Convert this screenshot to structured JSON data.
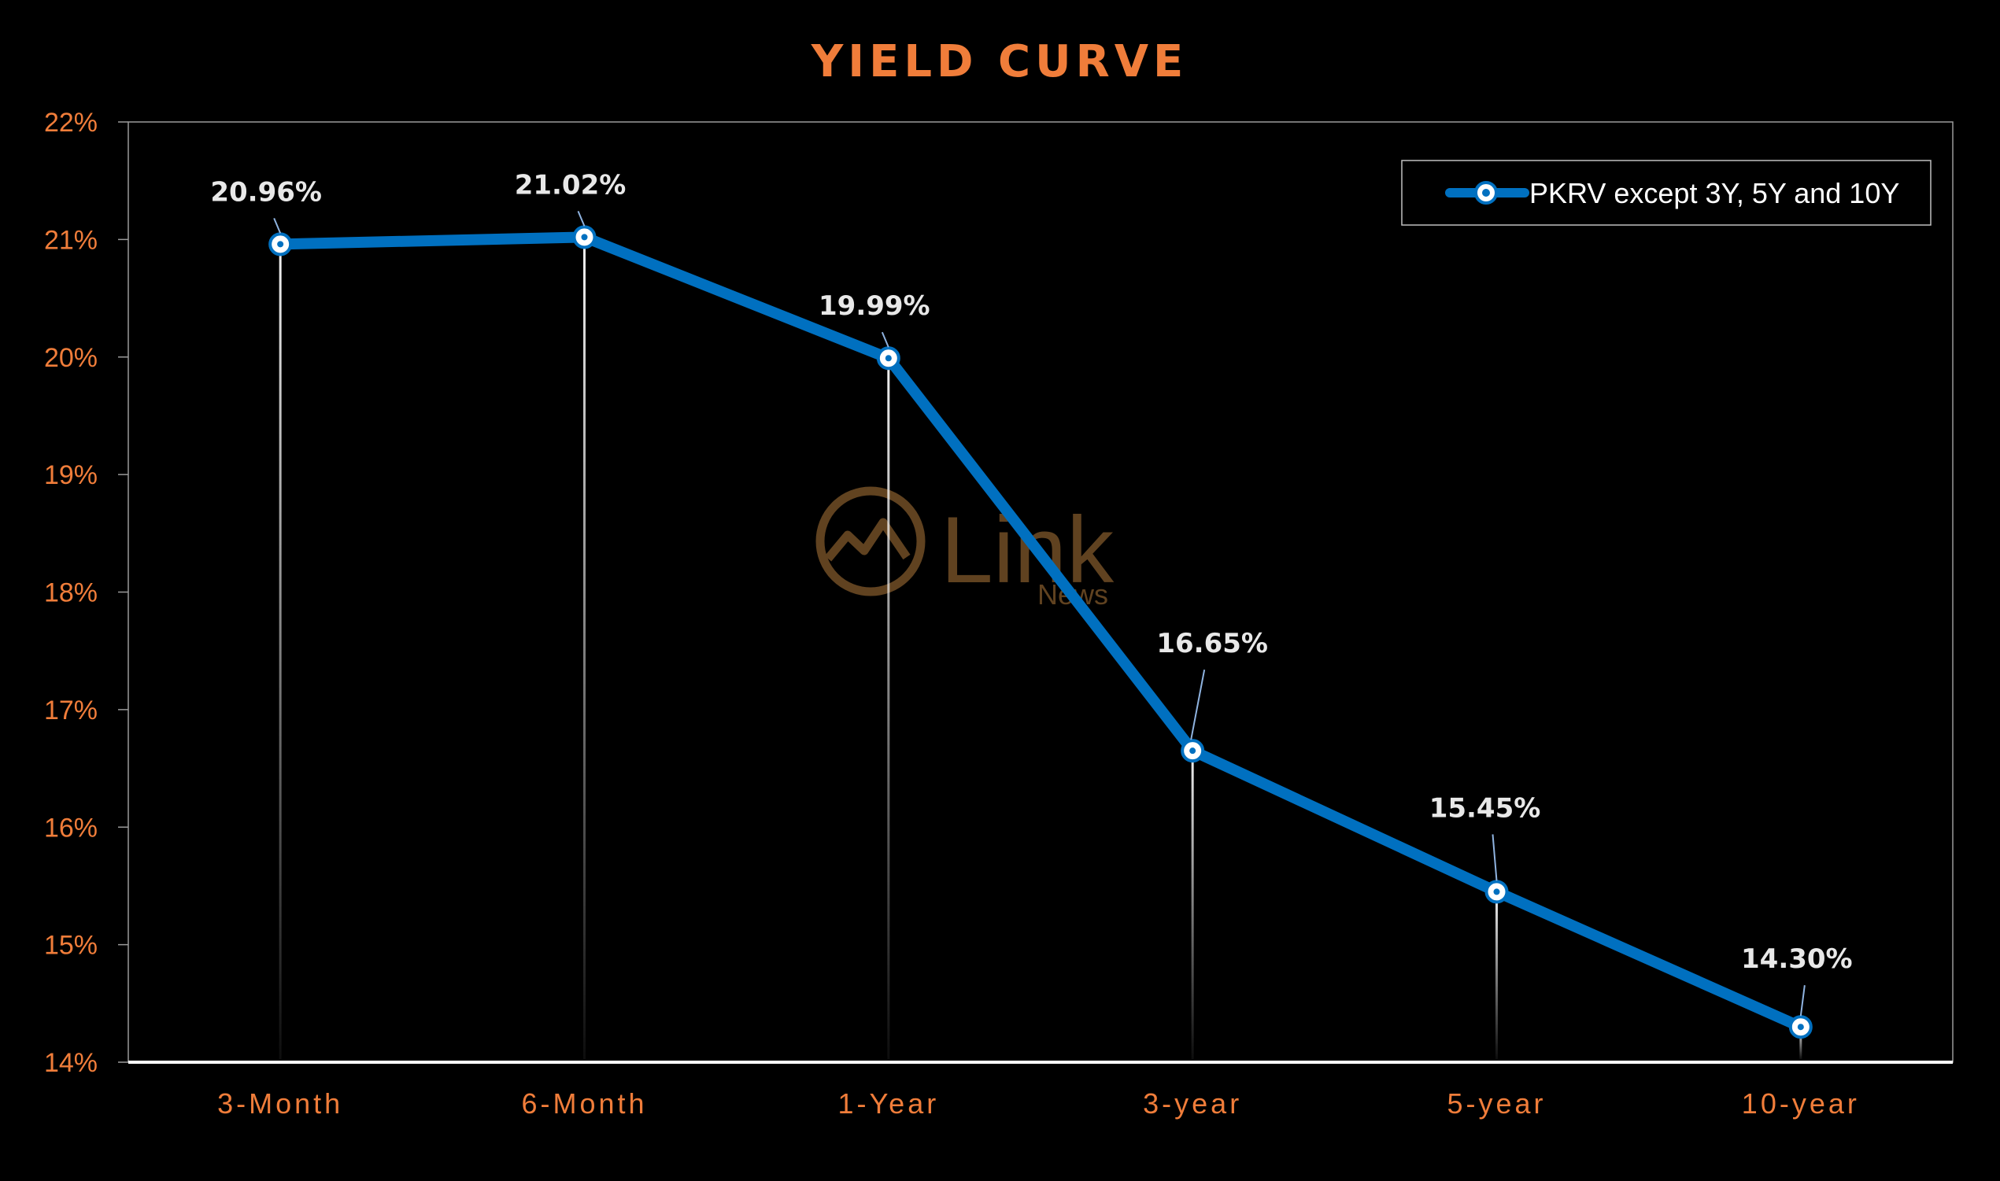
{
  "chart_data": {
    "type": "line",
    "title": "YIELD CURVE",
    "categories": [
      "3-Month",
      "6-Month",
      "1-Year",
      "3-year",
      "5-year",
      "10-year"
    ],
    "series": [
      {
        "name": "PKRV except 3Y, 5Y and 10Y",
        "values": [
          20.96,
          21.02,
          19.99,
          16.65,
          15.45,
          14.3
        ],
        "data_labels": [
          "20.96%",
          "21.02%",
          "19.99%",
          "16.65%",
          "15.45%",
          "14.30%"
        ]
      }
    ],
    "ylim": [
      14,
      22
    ],
    "yticks": [
      14,
      15,
      16,
      17,
      18,
      19,
      20,
      21,
      22
    ],
    "ytick_labels": [
      "14%",
      "15%",
      "16%",
      "17%",
      "18%",
      "19%",
      "20%",
      "21%",
      "22%"
    ],
    "xlabel": "",
    "ylabel": "",
    "grid": false,
    "drop_lines": true,
    "legend_position": "top-right"
  },
  "colors": {
    "background": "#000000",
    "accent": "#f07d3a",
    "series_line": "#0070c0",
    "label_text": "#e8e8e8",
    "watermark": "#6b4a24"
  },
  "watermark": {
    "brand": "Link",
    "sub": "News"
  }
}
